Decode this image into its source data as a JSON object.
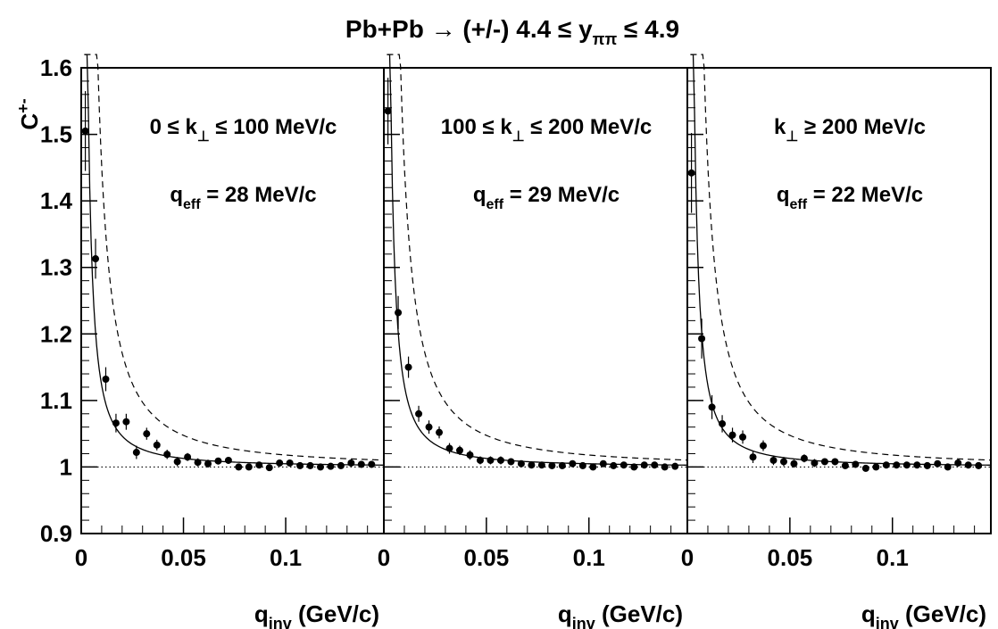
{
  "figure": {
    "title": {
      "prefix": "Pb+Pb → (+/-)  4.4 ≤ y",
      "sub": "ππ",
      "suffix": " ≤ 4.9"
    },
    "ylabel": {
      "main": "C",
      "sup": "+-"
    },
    "xlabel": {
      "main": "q",
      "sub": "inv",
      "suffix": " (GeV/c)"
    },
    "colors": {
      "axes": "#000000",
      "markers": "#000000",
      "background": "#ffffff"
    }
  },
  "chart_data": [
    {
      "type": "scatter",
      "panel": "left",
      "annotations": [
        {
          "pre": "0 ≤ k",
          "sub": "⊥",
          "post": " ≤ 100 MeV/c"
        },
        {
          "pre": "q",
          "sub": "eff",
          "post": " = 28 MeV/c"
        }
      ],
      "xlim": [
        0,
        0.148
      ],
      "ylim": [
        0.9,
        1.6
      ],
      "x_ticks": [
        0,
        0.05,
        0.1
      ],
      "x_tick_labels": [
        "0",
        "0.05",
        "0.1"
      ],
      "y_ticks": [
        0.9,
        1.0,
        1.1,
        1.2,
        1.3,
        1.4,
        1.5,
        1.6
      ],
      "y_tick_labels": [
        "0.9",
        "1",
        "1.1",
        "1.2",
        "1.3",
        "1.4",
        "1.5",
        "1.6"
      ],
      "reference_line": 1.0,
      "series": [
        {
          "x": [
            0.002,
            0.007,
            0.012,
            0.017,
            0.022,
            0.027,
            0.032,
            0.037,
            0.042,
            0.047,
            0.052,
            0.057,
            0.062,
            0.067,
            0.072,
            0.077,
            0.082,
            0.087,
            0.092,
            0.097,
            0.102,
            0.107,
            0.112,
            0.117,
            0.122,
            0.127,
            0.132,
            0.137,
            0.142
          ],
          "y": [
            1.505,
            1.313,
            1.132,
            1.066,
            1.068,
            1.022,
            1.05,
            1.033,
            1.019,
            1.008,
            1.015,
            1.007,
            1.005,
            1.009,
            1.01,
            1.0,
            1.0,
            1.003,
            0.999,
            1.006,
            1.006,
            1.002,
            1.002,
            1.0,
            1.001,
            1.002,
            1.006,
            1.004,
            1.004
          ],
          "yerr": [
            0.06,
            0.03,
            0.018,
            0.014,
            0.012,
            0.01,
            0.009,
            0.008,
            0.007,
            0.007,
            0.006,
            0.006,
            0.006,
            0.005,
            0.005,
            0.005,
            0.005,
            0.005,
            0.005,
            0.005,
            0.005,
            0.005,
            0.005,
            0.005,
            0.005,
            0.005,
            0.005,
            0.005,
            0.005
          ]
        }
      ]
    },
    {
      "type": "scatter",
      "panel": "middle",
      "annotations": [
        {
          "pre": "100 ≤ k",
          "sub": "⊥",
          "post": " ≤ 200 MeV/c"
        },
        {
          "pre": "q",
          "sub": "eff",
          "post": " = 29 MeV/c"
        }
      ],
      "xlim": [
        0,
        0.148
      ],
      "ylim": [
        0.9,
        1.6
      ],
      "x_ticks": [
        0,
        0.05,
        0.1
      ],
      "x_tick_labels": [
        "0",
        "0.05",
        "0.1"
      ],
      "y_ticks": [
        0.9,
        1.0,
        1.1,
        1.2,
        1.3,
        1.4,
        1.5,
        1.6
      ],
      "y_tick_labels": [
        "0.9",
        "1",
        "1.1",
        "1.2",
        "1.3",
        "1.4",
        "1.5",
        "1.6"
      ],
      "reference_line": 1.0,
      "series": [
        {
          "x": [
            0.002,
            0.007,
            0.012,
            0.017,
            0.022,
            0.027,
            0.032,
            0.037,
            0.042,
            0.047,
            0.052,
            0.057,
            0.062,
            0.067,
            0.072,
            0.077,
            0.082,
            0.087,
            0.092,
            0.097,
            0.102,
            0.107,
            0.112,
            0.117,
            0.122,
            0.127,
            0.132,
            0.137,
            0.142
          ],
          "y": [
            1.535,
            1.232,
            1.15,
            1.08,
            1.06,
            1.052,
            1.028,
            1.025,
            1.018,
            1.01,
            1.01,
            1.01,
            1.008,
            1.005,
            1.003,
            1.003,
            1.002,
            1.002,
            1.005,
            1.002,
            1.0,
            1.005,
            1.002,
            1.003,
            1.0,
            1.003,
            1.003,
            1.0,
            1.001
          ],
          "yerr": [
            0.05,
            0.025,
            0.016,
            0.012,
            0.01,
            0.009,
            0.008,
            0.007,
            0.007,
            0.006,
            0.006,
            0.006,
            0.005,
            0.005,
            0.005,
            0.005,
            0.005,
            0.005,
            0.005,
            0.005,
            0.005,
            0.005,
            0.005,
            0.005,
            0.005,
            0.005,
            0.005,
            0.005,
            0.005
          ]
        }
      ]
    },
    {
      "type": "scatter",
      "panel": "right",
      "annotations": [
        {
          "pre": "k",
          "sub": "⊥",
          "post": " ≥ 200 MeV/c"
        },
        {
          "pre": "q",
          "sub": "eff",
          "post": " = 22 MeV/c"
        }
      ],
      "xlim": [
        0,
        0.148
      ],
      "ylim": [
        0.9,
        1.6
      ],
      "x_ticks": [
        0,
        0.05,
        0.1
      ],
      "x_tick_labels": [
        "0",
        "0.05",
        "0.1"
      ],
      "y_ticks": [
        0.9,
        1.0,
        1.1,
        1.2,
        1.3,
        1.4,
        1.5,
        1.6
      ],
      "y_tick_labels": [
        "0.9",
        "1",
        "1.1",
        "1.2",
        "1.3",
        "1.4",
        "1.5",
        "1.6"
      ],
      "reference_line": 1.0,
      "series": [
        {
          "x": [
            0.002,
            0.007,
            0.012,
            0.017,
            0.022,
            0.027,
            0.032,
            0.037,
            0.042,
            0.047,
            0.052,
            0.057,
            0.062,
            0.067,
            0.072,
            0.077,
            0.082,
            0.087,
            0.092,
            0.097,
            0.102,
            0.107,
            0.112,
            0.117,
            0.122,
            0.127,
            0.132,
            0.137,
            0.142
          ],
          "y": [
            1.442,
            1.193,
            1.09,
            1.065,
            1.048,
            1.045,
            1.015,
            1.032,
            1.01,
            1.008,
            1.005,
            1.013,
            1.006,
            1.008,
            1.008,
            1.002,
            1.004,
            0.998,
            1.0,
            1.003,
            1.003,
            1.003,
            1.003,
            1.002,
            1.005,
            1.0,
            1.006,
            1.003,
            1.002
          ],
          "yerr": [
            0.06,
            0.03,
            0.018,
            0.013,
            0.011,
            0.01,
            0.009,
            0.008,
            0.007,
            0.007,
            0.006,
            0.006,
            0.006,
            0.005,
            0.005,
            0.005,
            0.005,
            0.005,
            0.005,
            0.005,
            0.005,
            0.005,
            0.005,
            0.005,
            0.005,
            0.005,
            0.005,
            0.005,
            0.005
          ]
        }
      ]
    }
  ]
}
